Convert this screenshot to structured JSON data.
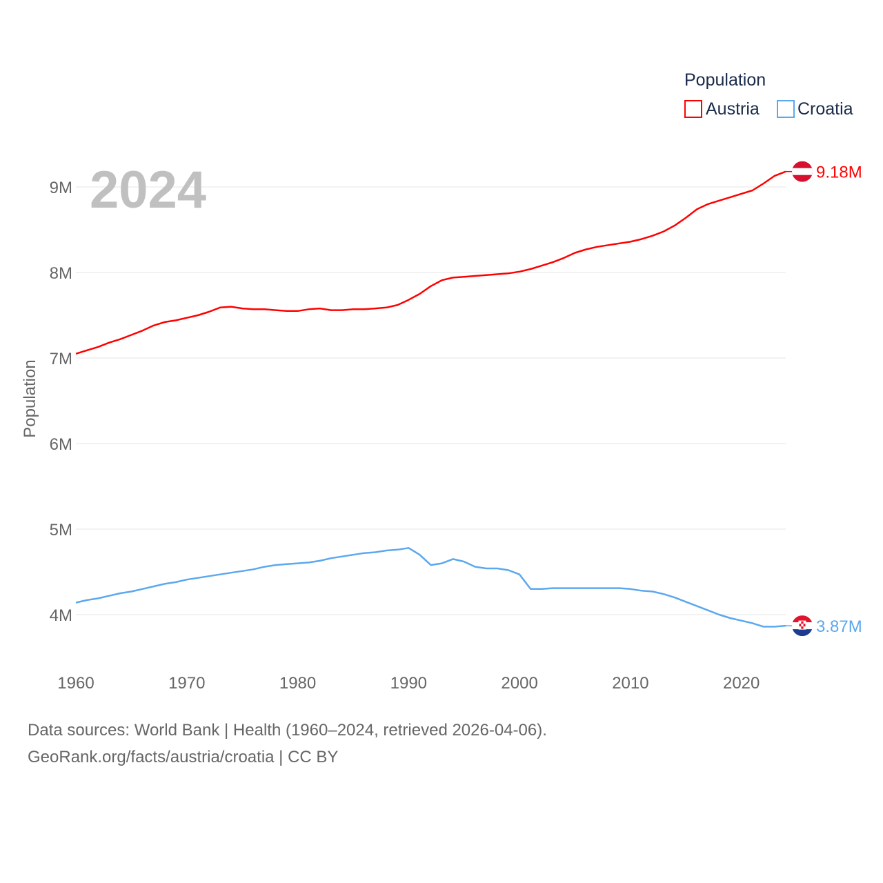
{
  "chart_data": {
    "type": "line",
    "year_label": "2024",
    "ylabel": "Population",
    "ylim": [
      3500000,
      9500000
    ],
    "xlim": [
      1960,
      2024
    ],
    "x_ticks": [
      "1960",
      "1970",
      "1980",
      "1990",
      "2000",
      "2010",
      "2020"
    ],
    "y_ticks": [
      {
        "v": 4000000,
        "label": "4M"
      },
      {
        "v": 5000000,
        "label": "5M"
      },
      {
        "v": 6000000,
        "label": "6M"
      },
      {
        "v": 7000000,
        "label": "7M"
      },
      {
        "v": 8000000,
        "label": "8M"
      },
      {
        "v": 9000000,
        "label": "9M"
      }
    ],
    "legend": {
      "title": "Population",
      "placement": "top-right"
    },
    "x": [
      1960,
      1961,
      1962,
      1963,
      1964,
      1965,
      1966,
      1967,
      1968,
      1969,
      1970,
      1971,
      1972,
      1973,
      1974,
      1975,
      1976,
      1977,
      1978,
      1979,
      1980,
      1981,
      1982,
      1983,
      1984,
      1985,
      1986,
      1987,
      1988,
      1989,
      1990,
      1991,
      1992,
      1993,
      1994,
      1995,
      1996,
      1997,
      1998,
      1999,
      2000,
      2001,
      2002,
      2003,
      2004,
      2005,
      2006,
      2007,
      2008,
      2009,
      2010,
      2011,
      2012,
      2013,
      2014,
      2015,
      2016,
      2017,
      2018,
      2019,
      2020,
      2021,
      2022,
      2023,
      2024
    ],
    "series": [
      {
        "name": "Austria",
        "color": "#ff0000",
        "end_label": "9.18M",
        "flag": "austria-flag",
        "values_millions": [
          7.05,
          7.09,
          7.13,
          7.18,
          7.22,
          7.27,
          7.32,
          7.38,
          7.42,
          7.44,
          7.47,
          7.5,
          7.54,
          7.59,
          7.6,
          7.58,
          7.57,
          7.57,
          7.56,
          7.55,
          7.55,
          7.57,
          7.58,
          7.56,
          7.56,
          7.57,
          7.57,
          7.58,
          7.59,
          7.62,
          7.68,
          7.75,
          7.84,
          7.91,
          7.94,
          7.95,
          7.96,
          7.97,
          7.98,
          7.99,
          8.01,
          8.04,
          8.08,
          8.12,
          8.17,
          8.23,
          8.27,
          8.3,
          8.32,
          8.34,
          8.36,
          8.39,
          8.43,
          8.48,
          8.55,
          8.64,
          8.74,
          8.8,
          8.84,
          8.88,
          8.92,
          8.96,
          9.04,
          9.13,
          9.18
        ]
      },
      {
        "name": "Croatia",
        "color": "#5ba8ee",
        "end_label": "3.87M",
        "flag": "croatia-flag",
        "values_millions": [
          4.14,
          4.17,
          4.19,
          4.22,
          4.25,
          4.27,
          4.3,
          4.33,
          4.36,
          4.38,
          4.41,
          4.43,
          4.45,
          4.47,
          4.49,
          4.51,
          4.53,
          4.56,
          4.58,
          4.59,
          4.6,
          4.61,
          4.63,
          4.66,
          4.68,
          4.7,
          4.72,
          4.73,
          4.75,
          4.76,
          4.78,
          4.7,
          4.58,
          4.6,
          4.65,
          4.62,
          4.56,
          4.54,
          4.54,
          4.52,
          4.47,
          4.3,
          4.3,
          4.31,
          4.31,
          4.31,
          4.31,
          4.31,
          4.31,
          4.31,
          4.3,
          4.28,
          4.27,
          4.24,
          4.2,
          4.15,
          4.1,
          4.05,
          4.0,
          3.96,
          3.93,
          3.9,
          3.86,
          3.86,
          3.87
        ]
      }
    ]
  },
  "footer": {
    "line1": "Data sources: World Bank | Health (1960–2024, retrieved 2026-04-06).",
    "line2": "GeoRank.org/facts/austria/croatia | CC BY"
  }
}
